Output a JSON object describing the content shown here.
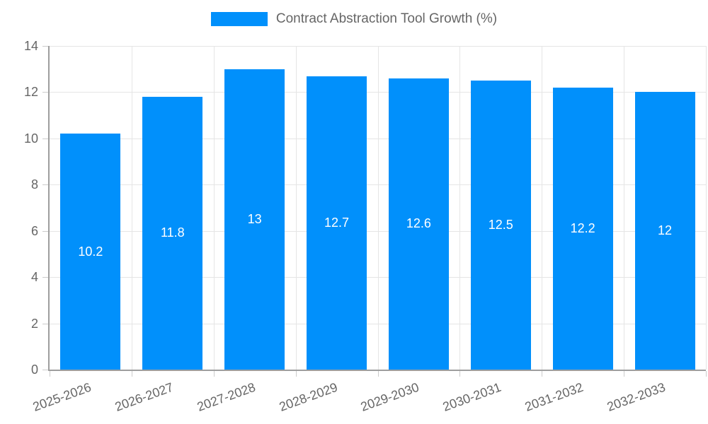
{
  "chart_data": {
    "type": "bar",
    "title": "Contract Abstraction Tool Growth (%)",
    "legend_label": "Contract Abstraction Tool Growth (%)",
    "categories": [
      "2025-2026",
      "2026-2027",
      "2027-2028",
      "2028-2029",
      "2029-2030",
      "2030-2031",
      "2031-2032",
      "2032-2033"
    ],
    "values": [
      10.2,
      11.8,
      13,
      12.7,
      12.6,
      12.5,
      12.2,
      12
    ],
    "data_labels": [
      "10.2",
      "11.8",
      "13",
      "12.7",
      "12.6",
      "12.5",
      "12.2",
      "12"
    ],
    "xlabel": "",
    "ylabel": "",
    "ylim": [
      0,
      14
    ],
    "ytick_step": 2,
    "ytick_labels": [
      "0",
      "2",
      "4",
      "6",
      "8",
      "10",
      "12",
      "14"
    ],
    "grid": true,
    "legend_position": "top",
    "x_label_rotation_deg": -20,
    "colors": {
      "bar": "#0190fb",
      "bar_value_label": "#ffffff",
      "axis_text": "#666666",
      "gridline": "#e5e5e5",
      "axis_line": "#9e9e9e",
      "tick": "#cccccc"
    }
  }
}
